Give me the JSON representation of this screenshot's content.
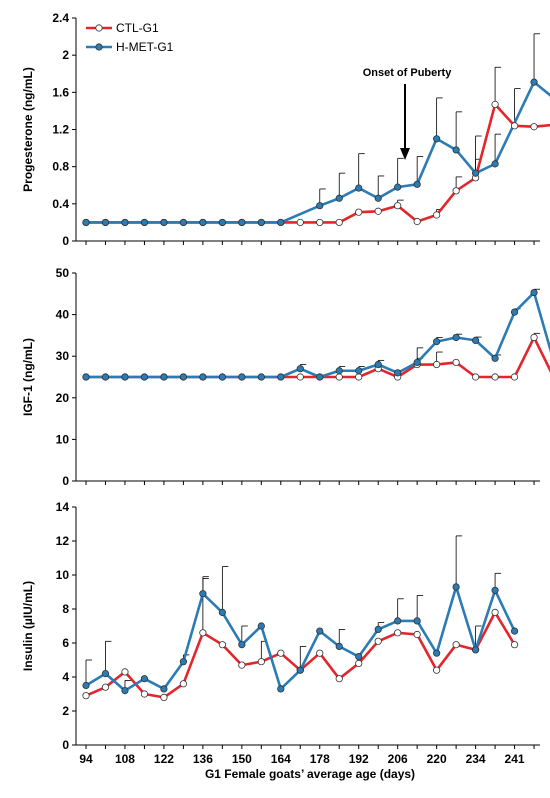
{
  "colors": {
    "ctl": "#e3262b",
    "hmet": "#2b7bb4"
  },
  "chart_data": [
    {
      "type": "line",
      "ylabel": "Progesterone (ng/mL)",
      "xlabel": "",
      "ylim": [
        0,
        2.4
      ],
      "yticks": [
        "0",
        "0.4",
        "0.8",
        "1.2",
        "1.6",
        "2",
        "2.4"
      ],
      "ytick_values": [
        0,
        0.4,
        0.8,
        1.2,
        1.6,
        2.0,
        2.4
      ],
      "legend": {
        "position": "top-left",
        "entries": [
          "CTL-G1",
          "H-MET-G1"
        ]
      },
      "annotation": {
        "text": "Onset of Puberty",
        "x_index": 15
      },
      "series": [
        {
          "name": "CTL-G1",
          "values": [
            0.2,
            0.2,
            0.2,
            0.2,
            0.2,
            0.2,
            0.2,
            0.2,
            0.2,
            0.2,
            0.2,
            0.2,
            0.2,
            0.2,
            0.31,
            0.32,
            0.38,
            0.21,
            0.28,
            0.54,
            0.68,
            1.47,
            1.24,
            1.23,
            1.25
          ],
          "error": [
            0,
            0,
            0,
            0,
            0,
            0,
            0,
            0,
            0,
            0,
            0,
            0,
            0,
            0,
            0,
            0,
            0.06,
            0,
            0.06,
            0.15,
            0.2,
            0.4,
            0.4,
            0,
            0
          ]
        },
        {
          "name": "H-MET-G1",
          "values": [
            0.2,
            0.2,
            0.2,
            0.2,
            0.2,
            0.2,
            0.2,
            0.2,
            0.2,
            0.2,
            0.2,
            0.38,
            0.46,
            0.57,
            0.46,
            0.58,
            0.61,
            1.1,
            0.98,
            0.73,
            0.83,
            1.71,
            1.54
          ],
          "x_index": [
            0,
            1,
            2,
            3,
            4,
            5,
            6,
            7,
            8,
            9,
            10,
            12,
            13,
            14,
            15,
            16,
            17,
            18,
            19,
            20,
            21,
            23,
            24
          ],
          "error": [
            0,
            0,
            0,
            0,
            0,
            0,
            0,
            0,
            0,
            0,
            0,
            0.18,
            0.27,
            0.37,
            0.24,
            0.31,
            0.3,
            0.44,
            0.41,
            0.4,
            0.32,
            0.52,
            0.52
          ]
        }
      ]
    },
    {
      "type": "line",
      "ylabel": "IGF-1 (ng/mL)",
      "xlabel": "",
      "ylim": [
        0,
        50
      ],
      "yticks": [
        "0",
        "10",
        "20",
        "30",
        "40",
        "50"
      ],
      "ytick_values": [
        0,
        10,
        20,
        30,
        40,
        50
      ],
      "series": [
        {
          "name": "CTL-G1",
          "values": [
            25,
            25,
            25,
            25,
            25,
            25,
            25,
            25,
            25,
            25,
            25,
            25,
            25,
            25,
            25,
            27,
            25,
            28,
            28,
            28.5,
            25,
            25,
            25,
            34.5,
            25
          ],
          "error": [
            0,
            0,
            0,
            0,
            0,
            0,
            0,
            0,
            0,
            0,
            0,
            0,
            0,
            0,
            0,
            0,
            0,
            4,
            3,
            0,
            0,
            0,
            0,
            1,
            0
          ]
        },
        {
          "name": "H-MET-G1",
          "values": [
            25,
            25,
            25,
            25,
            25,
            25,
            25,
            25,
            25,
            25,
            25,
            27,
            25,
            26.5,
            26.5,
            28,
            26,
            28.5,
            33.5,
            34.5,
            33.8,
            29.5,
            40.6,
            45.3,
            29
          ],
          "error": [
            0,
            0,
            0,
            0,
            0,
            0,
            0,
            0,
            0,
            0,
            0,
            1,
            0,
            1,
            1,
            1,
            0,
            1,
            1,
            0.8,
            0.8,
            0.8,
            0.8,
            0.8,
            0.8
          ]
        }
      ]
    },
    {
      "type": "line",
      "ylabel": "Insulin (µIU/mL)",
      "xlabel": "G1 Female goats’ average age (days)",
      "ylim": [
        0,
        14
      ],
      "yticks": [
        "0",
        "2",
        "4",
        "6",
        "8",
        "10",
        "12",
        "14"
      ],
      "ytick_values": [
        0,
        2,
        4,
        6,
        8,
        10,
        12,
        14
      ],
      "x_tick_labels": [
        "94",
        "108",
        "122",
        "136",
        "150",
        "164",
        "178",
        "192",
        "206",
        "220",
        "234",
        "241"
      ],
      "series": [
        {
          "name": "CTL-G1",
          "values": [
            2.9,
            3.4,
            4.3,
            3.0,
            2.8,
            3.6,
            6.6,
            5.9,
            4.7,
            4.9,
            5.4,
            4.4,
            5.4,
            3.9,
            4.8,
            6.1,
            6.6,
            6.5,
            4.4,
            5.9,
            5.6,
            7.8,
            5.9
          ],
          "error": [
            0,
            0,
            0,
            0,
            0,
            0,
            3.2,
            0,
            0,
            1.2,
            0,
            1.4,
            0,
            0,
            0,
            0,
            0,
            0,
            0,
            0,
            0,
            0,
            0
          ]
        },
        {
          "name": "H-MET-G1",
          "values": [
            3.5,
            4.2,
            3.2,
            3.9,
            3.3,
            4.9,
            8.9,
            7.8,
            5.9,
            7.0,
            3.3,
            4.4,
            6.7,
            5.8,
            5.2,
            6.8,
            7.3,
            7.3,
            5.4,
            9.3,
            5.6,
            9.1,
            6.7
          ],
          "error": [
            1.5,
            1.9,
            0.6,
            0,
            0,
            0.4,
            1.0,
            2.7,
            1.1,
            0,
            0,
            0,
            0,
            1.0,
            0,
            0.4,
            1.3,
            1.5,
            0,
            3.0,
            1.4,
            1.0,
            0
          ]
        }
      ]
    }
  ]
}
